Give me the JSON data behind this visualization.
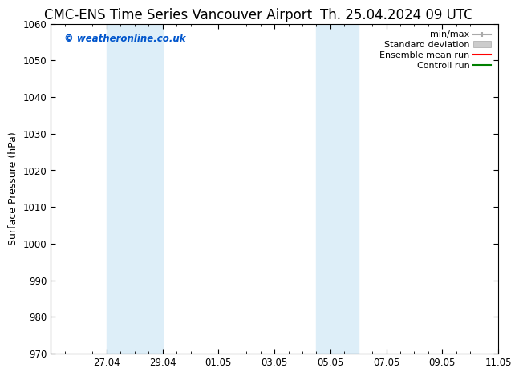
{
  "title_left": "CMC-ENS Time Series Vancouver Airport",
  "title_right": "Th. 25.04.2024 09 UTC",
  "ylabel": "Surface Pressure (hPa)",
  "ylim": [
    970,
    1060
  ],
  "yticks": [
    970,
    980,
    990,
    1000,
    1010,
    1020,
    1030,
    1040,
    1050,
    1060
  ],
  "xlim": [
    0,
    16
  ],
  "xtick_labels": [
    "27.04",
    "29.04",
    "01.05",
    "03.05",
    "05.05",
    "07.05",
    "09.05",
    "11.05"
  ],
  "xtick_positions": [
    2,
    4,
    6,
    8,
    10,
    12,
    14,
    16
  ],
  "shaded_bands": [
    {
      "x_start": 2,
      "x_end": 4,
      "color": "#ddeef8"
    },
    {
      "x_start": 9.5,
      "x_end": 11,
      "color": "#ddeef8"
    }
  ],
  "watermark": "© weatheronline.co.uk",
  "watermark_color": "#0055cc",
  "background_color": "#ffffff",
  "legend_entries": [
    {
      "label": "min/max",
      "color": "#aaaaaa"
    },
    {
      "label": "Standard deviation",
      "color": "#cccccc"
    },
    {
      "label": "Ensemble mean run",
      "color": "#ff0000"
    },
    {
      "label": "Controll run",
      "color": "#008000"
    }
  ],
  "title_fontsize": 12,
  "axis_fontsize": 9,
  "tick_fontsize": 8.5,
  "legend_fontsize": 8
}
